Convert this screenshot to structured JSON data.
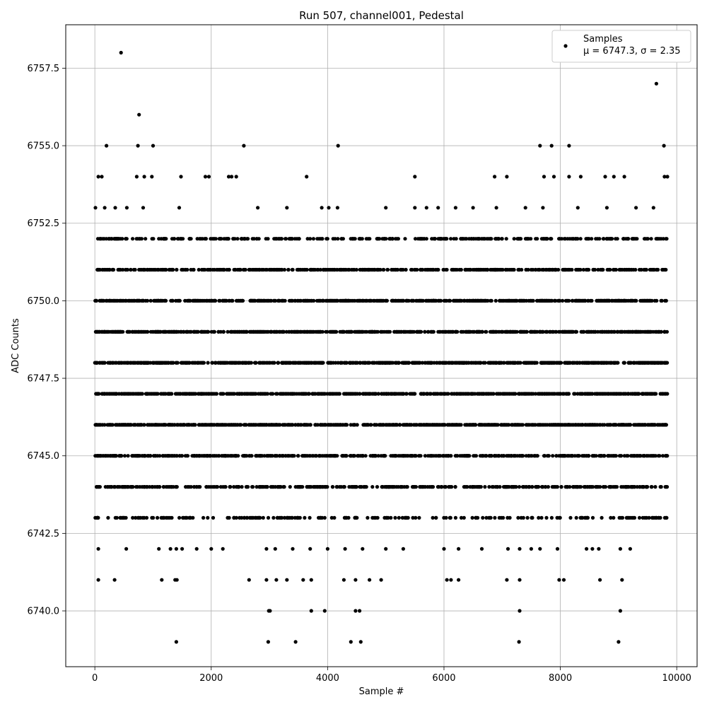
{
  "chart_data": {
    "type": "scatter",
    "title": "Run 507, channel001, Pedestal",
    "xlabel": "Sample #",
    "ylabel": "ADC Counts",
    "xlim": [
      -500,
      10350
    ],
    "ylim": [
      6738.2,
      6758.9
    ],
    "grid": true,
    "x_ticks": [
      0,
      2000,
      4000,
      6000,
      8000,
      10000
    ],
    "x_tick_labels": [
      "0",
      "2000",
      "4000",
      "6000",
      "8000",
      "10000"
    ],
    "y_ticks": [
      6740.0,
      6742.5,
      6745.0,
      6747.5,
      6750.0,
      6752.5,
      6755.0,
      6757.5
    ],
    "y_tick_labels": [
      "6740.0",
      "6742.5",
      "6745.0",
      "6747.5",
      "6750.0",
      "6752.5",
      "6755.0",
      "6757.5"
    ],
    "marker_color": "#000000",
    "legend": {
      "placement": "upper-right",
      "entries": [
        {
          "label": "Samples",
          "sublabel": "μ = 6747.3, σ = 2.35"
        }
      ]
    },
    "series": [
      {
        "name": "Samples",
        "x_range": [
          0,
          9840
        ],
        "level_note": "integer ADC levels sampled densely across the run",
        "levels": [
          {
            "y": 6751,
            "x": [
              0,
              9840
            ]
          },
          {
            "y": 6750,
            "x": [
              0,
              9840
            ]
          },
          {
            "y": 6749,
            "x": [
              0,
              9840
            ]
          },
          {
            "y": 6748,
            "x": [
              0,
              9840
            ]
          },
          {
            "y": 6747,
            "x": [
              0,
              9840
            ]
          },
          {
            "y": 6746,
            "x": [
              0,
              9840
            ]
          },
          {
            "y": 6745,
            "x": [
              0,
              9840
            ]
          },
          {
            "y": 6744,
            "x": [
              0,
              9840
            ]
          },
          {
            "y": 6752,
            "x": [
              0,
              9840
            ]
          },
          {
            "y": 6743,
            "x": [
              0,
              9840
            ]
          }
        ],
        "points": [
          [
            450,
            6758
          ],
          [
            9650,
            6757
          ],
          [
            760,
            6756
          ],
          [
            200,
            6755
          ],
          [
            740,
            6755
          ],
          [
            1000,
            6755
          ],
          [
            2560,
            6755
          ],
          [
            4180,
            6755
          ],
          [
            7650,
            6755
          ],
          [
            7850,
            6755
          ],
          [
            8150,
            6755
          ],
          [
            9780,
            6755
          ],
          [
            60,
            6754
          ],
          [
            120,
            6754
          ],
          [
            720,
            6754
          ],
          [
            850,
            6754
          ],
          [
            980,
            6754
          ],
          [
            1480,
            6754
          ],
          [
            1900,
            6754
          ],
          [
            1960,
            6754
          ],
          [
            2300,
            6754
          ],
          [
            2350,
            6754
          ],
          [
            2430,
            6754
          ],
          [
            3640,
            6754
          ],
          [
            5500,
            6754
          ],
          [
            6870,
            6754
          ],
          [
            7080,
            6754
          ],
          [
            7720,
            6754
          ],
          [
            7890,
            6754
          ],
          [
            8150,
            6754
          ],
          [
            8350,
            6754
          ],
          [
            8770,
            6754
          ],
          [
            8920,
            6754
          ],
          [
            9100,
            6754
          ],
          [
            9790,
            6754
          ],
          [
            9840,
            6754
          ],
          [
            10,
            6753
          ],
          [
            170,
            6753
          ],
          [
            350,
            6753
          ],
          [
            550,
            6753
          ],
          [
            830,
            6753
          ],
          [
            1450,
            6753
          ],
          [
            2800,
            6753
          ],
          [
            3300,
            6753
          ],
          [
            3900,
            6753
          ],
          [
            4020,
            6753
          ],
          [
            4170,
            6753
          ],
          [
            5000,
            6753
          ],
          [
            5500,
            6753
          ],
          [
            5700,
            6753
          ],
          [
            5900,
            6753
          ],
          [
            6200,
            6753
          ],
          [
            6500,
            6753
          ],
          [
            6900,
            6753
          ],
          [
            7400,
            6753
          ],
          [
            7700,
            6753
          ],
          [
            8300,
            6753
          ],
          [
            8800,
            6753
          ],
          [
            9300,
            6753
          ],
          [
            9600,
            6753
          ],
          [
            60,
            6742
          ],
          [
            540,
            6742
          ],
          [
            1100,
            6742
          ],
          [
            1300,
            6742
          ],
          [
            1400,
            6742
          ],
          [
            1500,
            6742
          ],
          [
            1750,
            6742
          ],
          [
            2000,
            6742
          ],
          [
            2200,
            6742
          ],
          [
            2950,
            6742
          ],
          [
            3100,
            6742
          ],
          [
            3400,
            6742
          ],
          [
            3700,
            6742
          ],
          [
            4000,
            6742
          ],
          [
            4300,
            6742
          ],
          [
            4600,
            6742
          ],
          [
            5000,
            6742
          ],
          [
            5300,
            6742
          ],
          [
            6000,
            6742
          ],
          [
            6250,
            6742
          ],
          [
            6650,
            6742
          ],
          [
            7100,
            6742
          ],
          [
            7300,
            6742
          ],
          [
            7500,
            6742
          ],
          [
            7650,
            6742
          ],
          [
            7950,
            6742
          ],
          [
            8450,
            6742
          ],
          [
            8550,
            6742
          ],
          [
            8660,
            6742
          ],
          [
            9030,
            6742
          ],
          [
            9200,
            6742
          ],
          [
            60,
            6741
          ],
          [
            340,
            6741
          ],
          [
            1150,
            6741
          ],
          [
            1380,
            6741
          ],
          [
            1410,
            6741
          ],
          [
            2650,
            6741
          ],
          [
            2950,
            6741
          ],
          [
            3120,
            6741
          ],
          [
            3300,
            6741
          ],
          [
            3580,
            6741
          ],
          [
            3720,
            6741
          ],
          [
            4280,
            6741
          ],
          [
            4480,
            6741
          ],
          [
            4720,
            6741
          ],
          [
            4920,
            6741
          ],
          [
            6050,
            6741
          ],
          [
            6120,
            6741
          ],
          [
            6250,
            6741
          ],
          [
            7080,
            6741
          ],
          [
            7300,
            6741
          ],
          [
            7980,
            6741
          ],
          [
            8060,
            6741
          ],
          [
            8680,
            6741
          ],
          [
            9060,
            6741
          ],
          [
            2990,
            6740
          ],
          [
            3010,
            6740
          ],
          [
            3720,
            6740
          ],
          [
            3950,
            6740
          ],
          [
            4480,
            6740
          ],
          [
            4550,
            6740
          ],
          [
            7300,
            6740
          ],
          [
            9030,
            6740
          ],
          [
            1400,
            6739
          ],
          [
            2980,
            6739
          ],
          [
            3450,
            6739
          ],
          [
            4400,
            6739
          ],
          [
            4570,
            6739
          ],
          [
            7290,
            6739
          ],
          [
            9000,
            6739
          ]
        ]
      }
    ]
  }
}
